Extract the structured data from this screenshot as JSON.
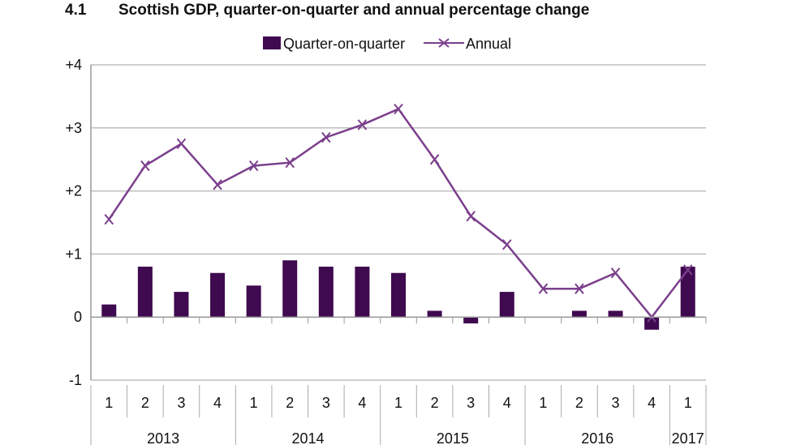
{
  "title_number": "4.1",
  "title": "Scottish GDP, quarter-on-quarter and annual percentage change",
  "chart_data": {
    "type": "bar+line",
    "title": "Scottish GDP, quarter-on-quarter and annual percentage change",
    "legend_position": "top",
    "grid": true,
    "ylim": [
      -1,
      4
    ],
    "yticks": [
      -1,
      0,
      1,
      2,
      3,
      4
    ],
    "ytick_labels": [
      "-1",
      "0",
      "+1",
      "+2",
      "+3",
      "+4"
    ],
    "categories": [
      "1",
      "2",
      "3",
      "4",
      "1",
      "2",
      "3",
      "4",
      "1",
      "2",
      "3",
      "4",
      "1",
      "2",
      "3",
      "4",
      "1"
    ],
    "years": [
      {
        "label": "2013",
        "count": 4
      },
      {
        "label": "2014",
        "count": 4
      },
      {
        "label": "2015",
        "count": 4
      },
      {
        "label": "2016",
        "count": 4
      },
      {
        "label": "2017",
        "count": 1
      }
    ],
    "series": [
      {
        "name": "Quarter-on-quarter",
        "type": "bar",
        "color": "#3f0a4f",
        "values": [
          0.2,
          0.8,
          0.4,
          0.7,
          0.5,
          0.9,
          0.8,
          0.8,
          0.7,
          0.1,
          -0.1,
          0.4,
          0.0,
          0.1,
          0.1,
          -0.2,
          0.8
        ]
      },
      {
        "name": "Annual",
        "type": "line",
        "marker": "x",
        "color": "#7b3f8c",
        "values": [
          1.55,
          2.4,
          2.75,
          2.1,
          2.4,
          2.45,
          2.85,
          3.05,
          3.3,
          2.5,
          1.6,
          1.15,
          0.45,
          0.45,
          0.7,
          0.0,
          0.75
        ]
      }
    ]
  }
}
